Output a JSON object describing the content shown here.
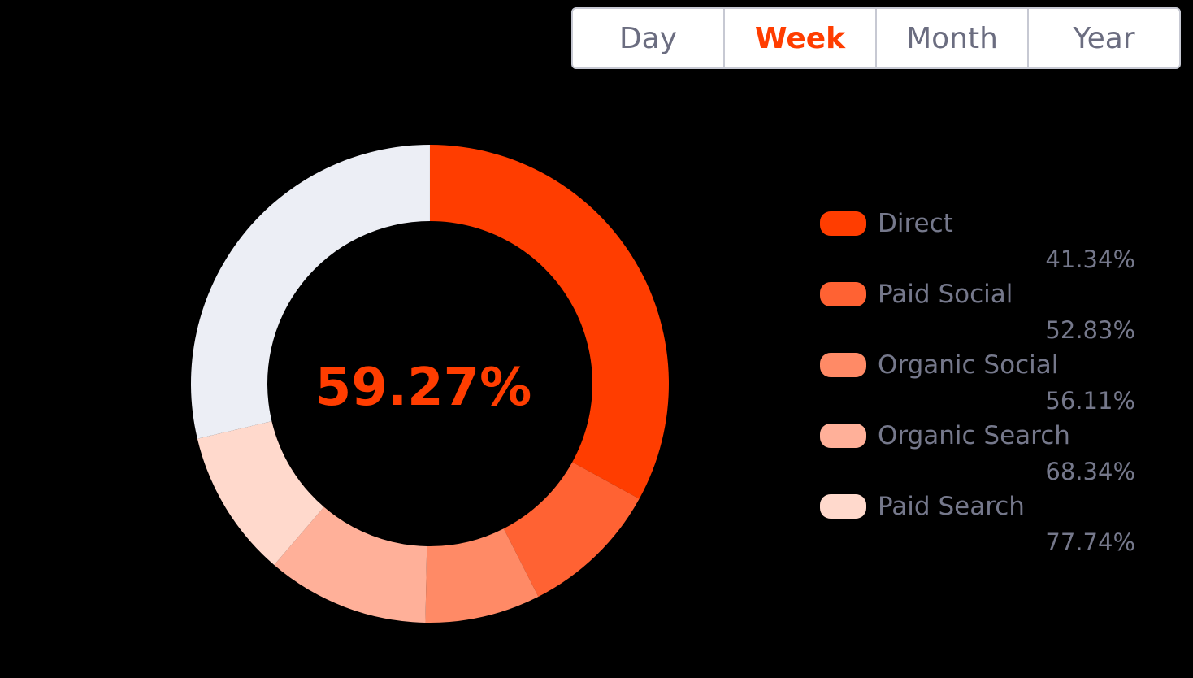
{
  "tabs": [
    {
      "label": "Day",
      "active": false
    },
    {
      "label": "Week",
      "active": true
    },
    {
      "label": "Month",
      "active": false
    },
    {
      "label": "Year",
      "active": false
    }
  ],
  "center_value": "59.27%",
  "colors": {
    "accent": "#ff3d00",
    "remainder": "#eceef5",
    "text": "#75788b"
  },
  "chart_data": {
    "type": "pie",
    "variant": "donut",
    "center_label": "59.27%",
    "legend_placement": "right",
    "slices": [
      {
        "name": "Direct",
        "value": 41.34,
        "label": "41.34%",
        "share": 0.33,
        "color": "#ff3d00"
      },
      {
        "name": "Paid Social",
        "value": 52.83,
        "label": "52.83%",
        "share": 0.095,
        "color": "#ff6233"
      },
      {
        "name": "Organic Social",
        "value": 56.11,
        "label": "56.11%",
        "share": 0.078,
        "color": "#ff8a66"
      },
      {
        "name": "Organic Search",
        "value": 68.34,
        "label": "68.34%",
        "share": 0.11,
        "color": "#ffb099"
      },
      {
        "name": "Paid Search",
        "value": 77.74,
        "label": "77.74%",
        "share": 0.1,
        "color": "#ffd9cc"
      }
    ],
    "remainder_share": 0.287
  }
}
